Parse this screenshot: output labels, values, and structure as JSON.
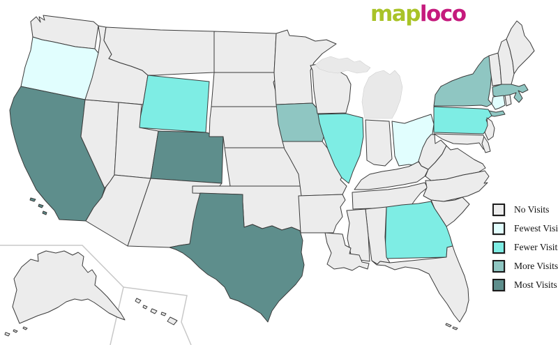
{
  "logo": {
    "map_text": "map",
    "loco_text": "loco",
    "map_color": "#A9C327",
    "loco_color": "#C51A7D"
  },
  "legend": {
    "items": [
      {
        "label": "No Visits",
        "level": "none",
        "color": "#ECECEC"
      },
      {
        "label": "Fewest Visits",
        "level": "fewest",
        "color": "#E1FEFE"
      },
      {
        "label": "Fewer Visits",
        "level": "fewer",
        "color": "#7EEDE4"
      },
      {
        "label": "More Visits",
        "level": "more",
        "color": "#8FC6C2"
      },
      {
        "label": "Most Visits",
        "level": "most",
        "color": "#5E8E8C"
      }
    ]
  },
  "map": {
    "stroke_color": "#3A3A3A",
    "inset_border_color": "#C8C8C8",
    "default_level": "none",
    "state_levels": {
      "CA": "most",
      "CO": "most",
      "TX": "most",
      "IA": "more",
      "NY": "more",
      "MA": "more",
      "WY": "fewer",
      "PA": "fewer",
      "IL": "fewer",
      "GA": "fewer",
      "OR": "fewest",
      "OH": "fewest",
      "CT": "fewest"
    }
  }
}
